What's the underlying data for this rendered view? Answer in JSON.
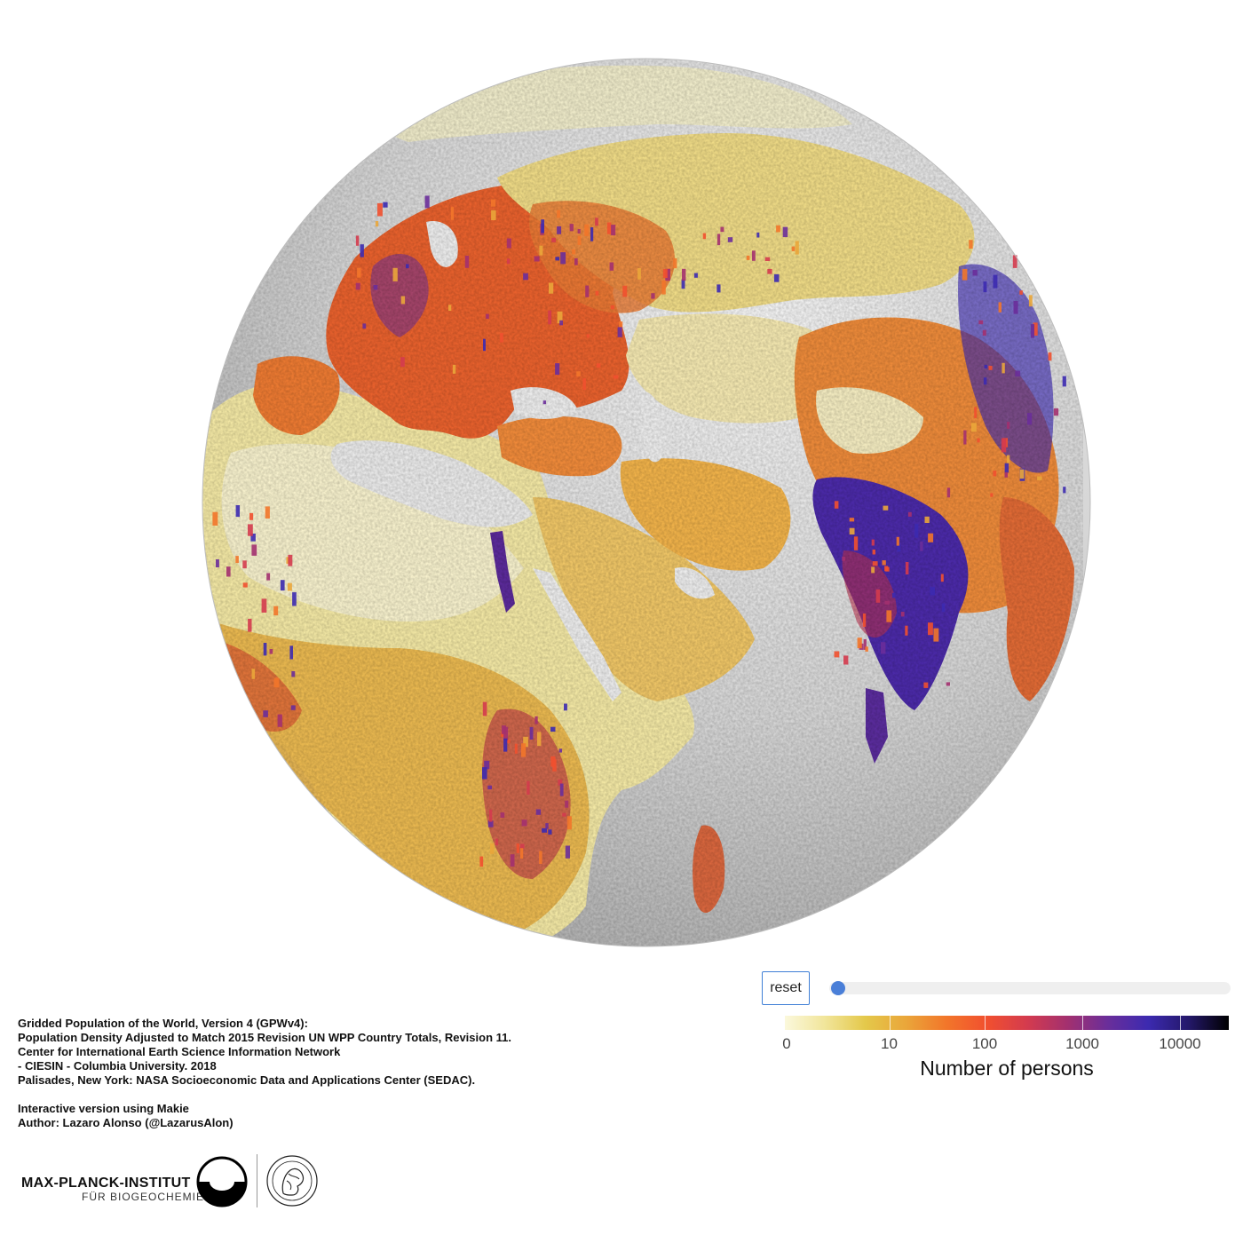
{
  "controls": {
    "reset_label": "reset",
    "slider_value": 0.0
  },
  "colorbar": {
    "title": "Number of persons",
    "ticks": [
      "0",
      "10",
      "100",
      "1000",
      "10000"
    ],
    "stops": [
      "#fbf8dc",
      "#f1e59a",
      "#e4c84a",
      "#eaa63a",
      "#f2762a",
      "#f1502f",
      "#d43b4e",
      "#a3306f",
      "#6a2e9a",
      "#3c2ab0",
      "#24186a",
      "#000000"
    ]
  },
  "credits": {
    "line1": "Gridded Population of the World, Version 4 (GPWv4):",
    "line2": "Population Density Adjusted to Match 2015 Revision UN WPP Country Totals, Revision 11.",
    "line3": "Center for International Earth Science Information Network",
    "line4": "- CIESIN - Columbia University. 2018",
    "line5": "Palisades, New York: NASA Socioeconomic Data and Applications Center (SEDAC).",
    "line6": "Interactive version using Makie",
    "line7": "Author: Lazaro Alonso (@LazarusAlon)"
  },
  "logos": {
    "institute_name": "MAX-PLANCK-INSTITUT",
    "institute_sub": "FÜR BIOGEOCHEMIE",
    "mpi_logo": "mpi-bgc-logo",
    "minerva_logo": "minerva-seal"
  },
  "map": {
    "type": "3d-globe-population",
    "projection": "orthographic",
    "colors": {
      "ocean": "#d9d9d9",
      "low": "#f1e8a8",
      "mid": "#f2762a",
      "high": "#3c2ab0"
    }
  }
}
